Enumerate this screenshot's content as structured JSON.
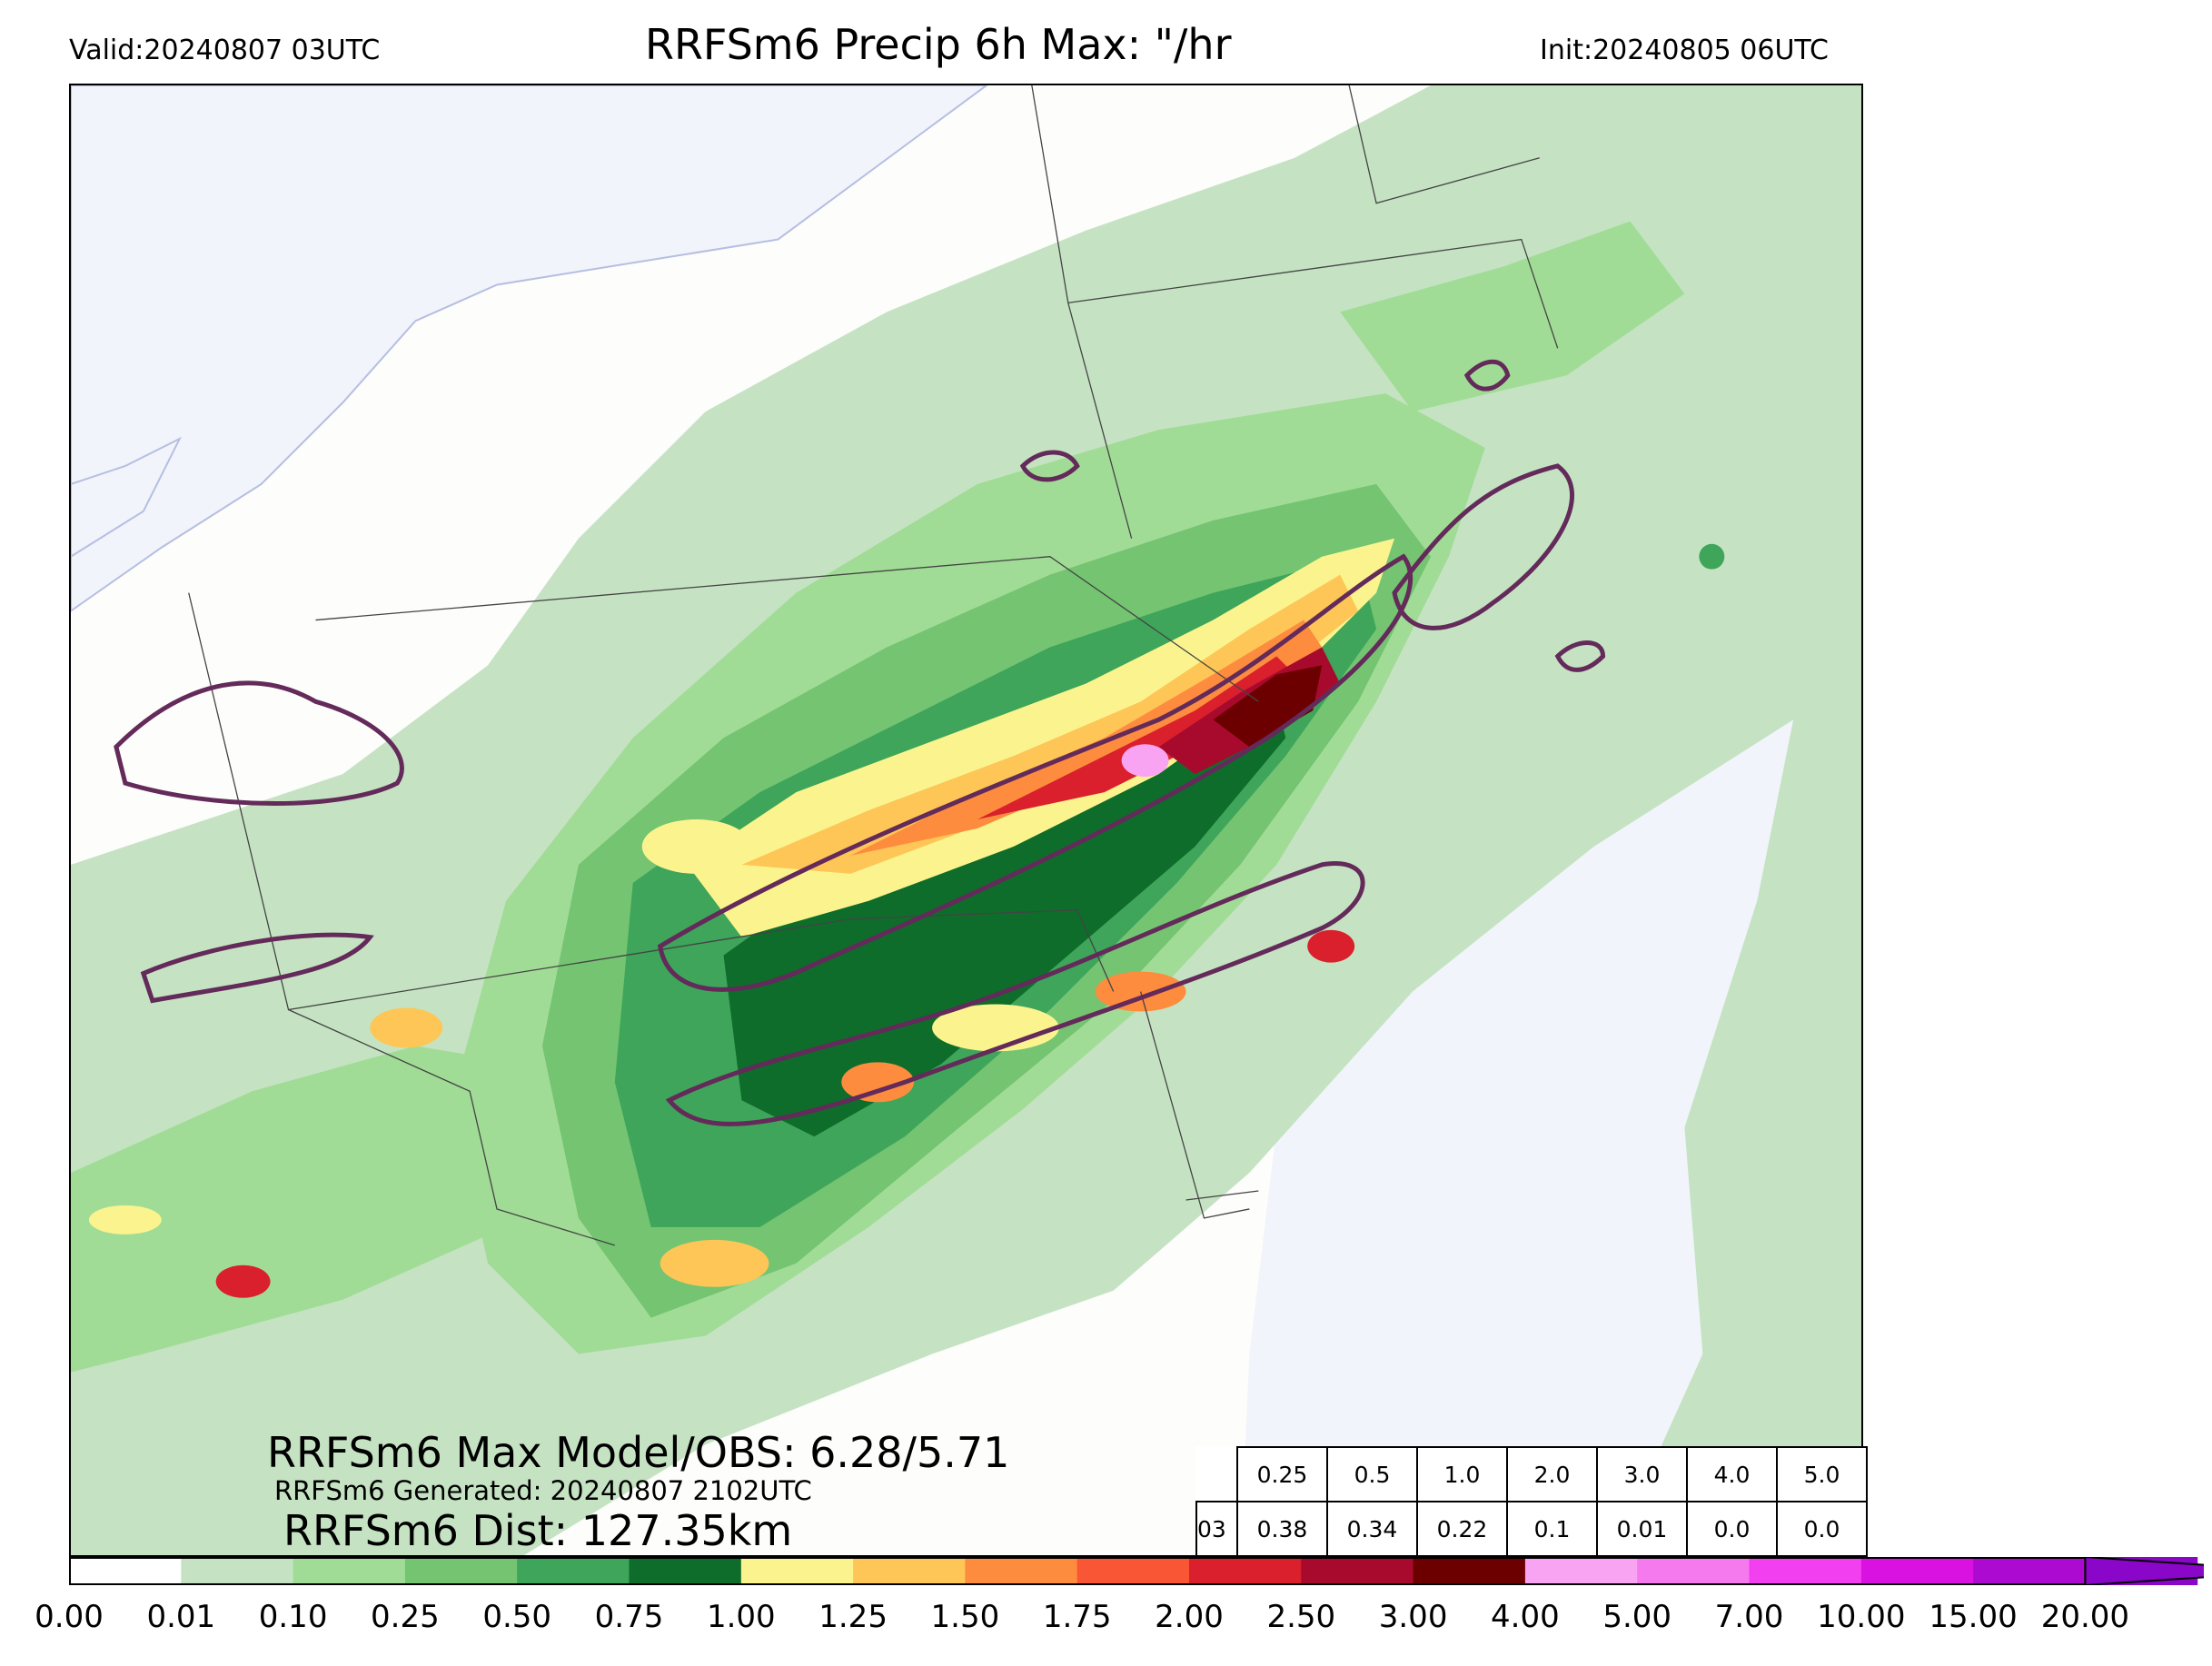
{
  "header": {
    "valid": "Valid:20240807 03UTC",
    "title": "RRFSm6 Precip 6h Max: \"/hr",
    "init": "Init:20240805 06UTC"
  },
  "stats": {
    "max_model_obs": "RRFSm6 Max Model/OBS: 6.28/5.71",
    "generated": "RRFSm6 Generated: 20240807 2102UTC",
    "distance": "RRFSm6 Dist: 127.35km"
  },
  "skill_table": {
    "thresholds": [
      "0.25",
      "0.5",
      "1.0",
      "2.0",
      "3.0",
      "4.0",
      "5.0"
    ],
    "row_label": "03",
    "values": [
      "0.38",
      "0.34",
      "0.22",
      "0.1",
      "0.01",
      "0.0",
      "0.0"
    ]
  },
  "colorbar": {
    "labels": [
      "0.00",
      "0.01",
      "0.10",
      "0.25",
      "0.50",
      "0.75",
      "1.00",
      "1.25",
      "1.50",
      "1.75",
      "2.00",
      "2.50",
      "3.00",
      "4.00",
      "5.00",
      "7.00",
      "10.00",
      "15.00",
      "20.00"
    ],
    "colors": [
      "#ffffff",
      "#c5e3c3",
      "#a1dc96",
      "#74c472",
      "#3ea55a",
      "#0e6d2a",
      "#fbf48e",
      "#fdc656",
      "#fd8c3e",
      "#f85634",
      "#d9202c",
      "#a80a2e",
      "#6c0000",
      "#f8a4f2",
      "#f47aee",
      "#f23ff0",
      "#da12e1",
      "#ad0ad1",
      "#8a06c8"
    ]
  },
  "map_colors": {
    "water": "#f1f4fa",
    "land": "#fdfdfb",
    "obs_contour": "#632a5a",
    "state_line": "#444444"
  }
}
